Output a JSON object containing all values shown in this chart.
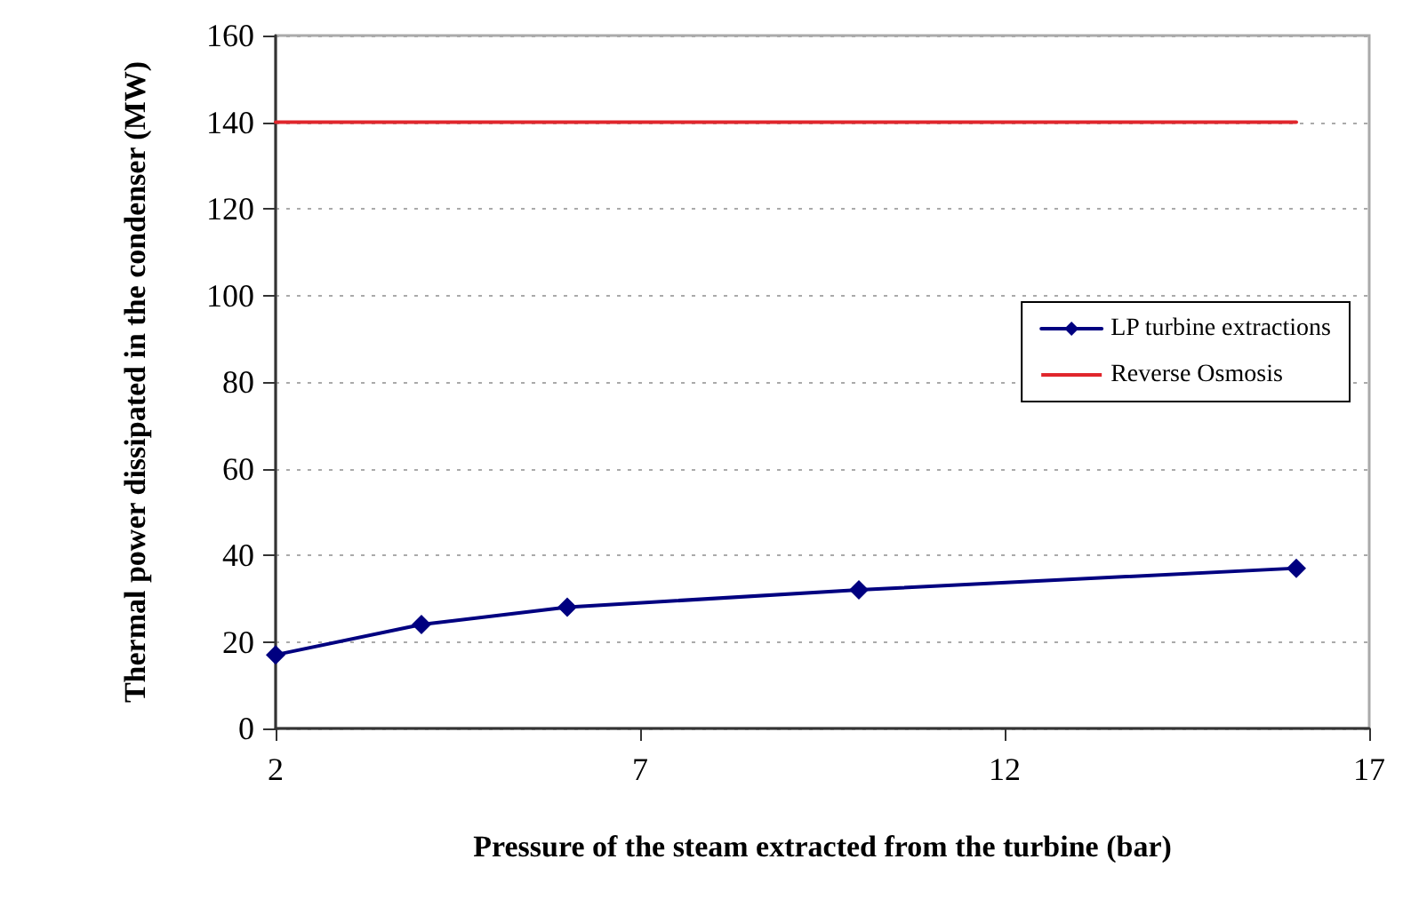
{
  "chart_data": {
    "type": "line",
    "xlabel": "Pressure of the steam extracted from the turbine (bar)",
    "ylabel": "Thermal power dissipated in the condenser (MW)",
    "xlim": [
      2,
      17
    ],
    "xticks": [
      2,
      7,
      12,
      17
    ],
    "ylim": [
      0,
      160
    ],
    "yticks": [
      0,
      20,
      40,
      60,
      80,
      100,
      120,
      140,
      160
    ],
    "grid": "y",
    "legend": "right",
    "series": [
      {
        "name": "LP turbine extractions",
        "color": "#000080",
        "x": [
          2,
          4,
          6,
          10,
          16
        ],
        "values": [
          17,
          24,
          28,
          32,
          37
        ],
        "marker": "diamond"
      },
      {
        "name": "Reverse Osmosis",
        "color": "#e0262c",
        "x": [
          2,
          16
        ],
        "values": [
          140,
          140
        ],
        "marker": "none"
      }
    ]
  }
}
